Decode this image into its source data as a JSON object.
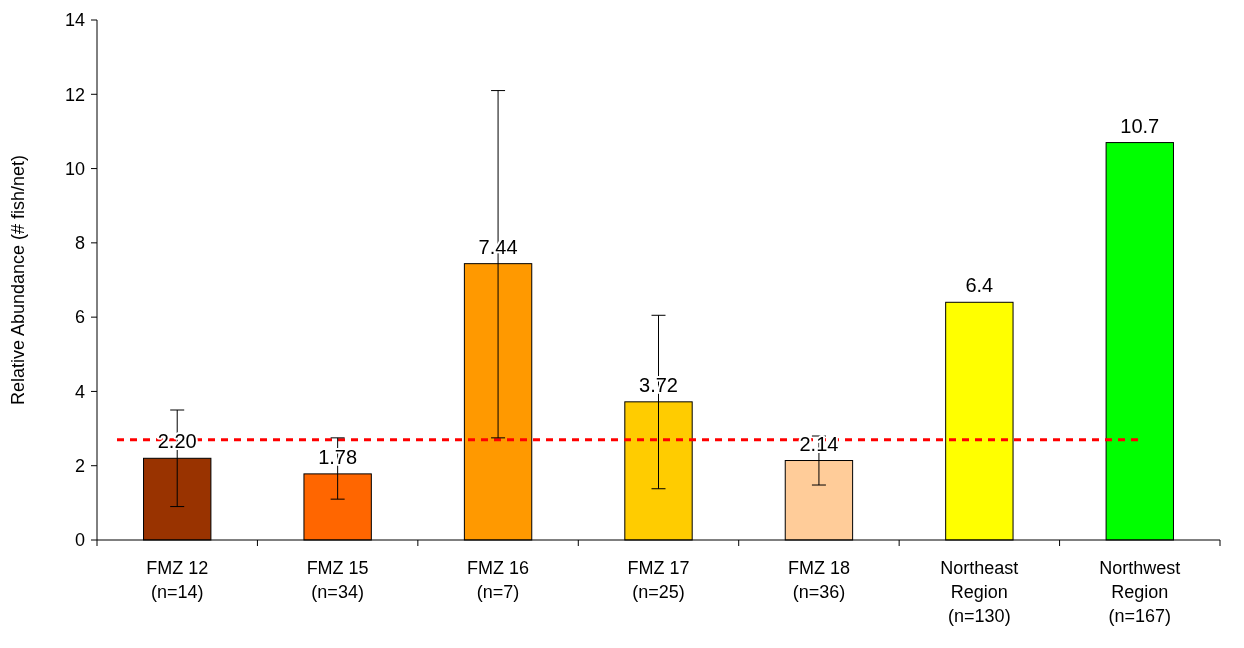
{
  "chart_data": {
    "type": "bar",
    "ylabel": "Relative Abundance (# fish/net)",
    "categories": [
      "FMZ 12\n(n=14)",
      "FMZ 15\n(n=34)",
      "FMZ 16\n(n=7)",
      "FMZ 17\n(n=25)",
      "FMZ 18\n(n=36)",
      "Northeast\nRegion\n(n=130)",
      "Northwest\nRegion\n(n=167)"
    ],
    "values": [
      2.2,
      1.78,
      7.44,
      3.72,
      2.14,
      6.4,
      10.7
    ],
    "colors": [
      "#993300",
      "#ff6600",
      "#ff9900",
      "#ffcc00",
      "#ffcc99",
      "#ffff00",
      "#00ff00"
    ],
    "value_labels": [
      "2.20",
      "1.78",
      "7.44",
      "3.72",
      "2.14",
      "6.4",
      "10.7"
    ],
    "errors": [
      [
        0.9,
        3.5
      ],
      [
        1.1,
        2.75
      ],
      [
        2.75,
        12.1
      ],
      [
        1.38,
        6.05
      ],
      [
        1.48,
        2.8
      ],
      null,
      null
    ],
    "ylim": [
      0,
      14
    ],
    "yticks": [
      0,
      2,
      4,
      6,
      8,
      10,
      12,
      14
    ],
    "grid": false,
    "ref_lines": [
      {
        "axis": "y",
        "value": 2.7,
        "color": "#ff0000",
        "line_style": "dashed"
      }
    ]
  }
}
